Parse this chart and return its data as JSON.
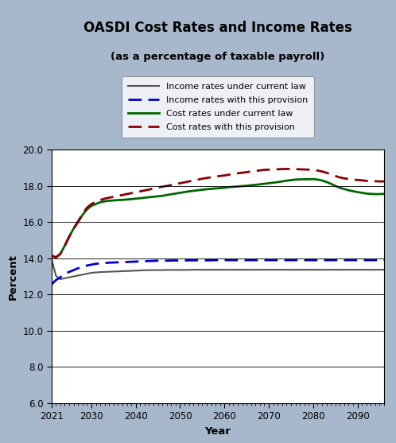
{
  "title": "OASDI Cost Rates and Income Rates",
  "subtitle": "(as a percentage of taxable payroll)",
  "xlabel": "Year",
  "ylabel": "Percent",
  "background_color": "#a8b8cc",
  "plot_bg_color": "#ffffff",
  "ylim": [
    6.0,
    20.0
  ],
  "yticks": [
    6.0,
    8.0,
    10.0,
    12.0,
    14.0,
    16.0,
    18.0,
    20.0
  ],
  "xticks": [
    2021,
    2030,
    2040,
    2050,
    2060,
    2070,
    2080,
    2090
  ],
  "years": [
    2021,
    2022,
    2023,
    2024,
    2025,
    2026,
    2027,
    2028,
    2029,
    2030,
    2031,
    2032,
    2033,
    2034,
    2035,
    2036,
    2037,
    2038,
    2039,
    2040,
    2041,
    2042,
    2043,
    2044,
    2045,
    2046,
    2047,
    2048,
    2049,
    2050,
    2051,
    2052,
    2053,
    2054,
    2055,
    2056,
    2057,
    2058,
    2059,
    2060,
    2061,
    2062,
    2063,
    2064,
    2065,
    2066,
    2067,
    2068,
    2069,
    2070,
    2071,
    2072,
    2073,
    2074,
    2075,
    2076,
    2077,
    2078,
    2079,
    2080,
    2081,
    2082,
    2083,
    2084,
    2085,
    2086,
    2087,
    2088,
    2089,
    2090,
    2091,
    2092,
    2093,
    2094,
    2095,
    2096
  ],
  "income_current_law": [
    13.98,
    13.04,
    12.85,
    12.9,
    12.95,
    13.0,
    13.05,
    13.1,
    13.15,
    13.2,
    13.22,
    13.24,
    13.25,
    13.26,
    13.27,
    13.28,
    13.29,
    13.3,
    13.31,
    13.32,
    13.33,
    13.34,
    13.35,
    13.35,
    13.35,
    13.35,
    13.36,
    13.36,
    13.36,
    13.36,
    13.36,
    13.36,
    13.37,
    13.37,
    13.37,
    13.37,
    13.37,
    13.37,
    13.37,
    13.37,
    13.37,
    13.37,
    13.37,
    13.37,
    13.37,
    13.37,
    13.37,
    13.37,
    13.37,
    13.37,
    13.37,
    13.37,
    13.37,
    13.37,
    13.37,
    13.37,
    13.37,
    13.37,
    13.37,
    13.37,
    13.37,
    13.37,
    13.37,
    13.37,
    13.37,
    13.37,
    13.37,
    13.37,
    13.37,
    13.37,
    13.37,
    13.37,
    13.37,
    13.37,
    13.37,
    13.37
  ],
  "income_provision": [
    12.55,
    12.8,
    12.95,
    13.15,
    13.25,
    13.35,
    13.45,
    13.55,
    13.6,
    13.65,
    13.7,
    13.72,
    13.74,
    13.76,
    13.77,
    13.78,
    13.79,
    13.8,
    13.81,
    13.82,
    13.83,
    13.84,
    13.85,
    13.86,
    13.87,
    13.87,
    13.87,
    13.88,
    13.88,
    13.88,
    13.88,
    13.89,
    13.89,
    13.89,
    13.89,
    13.89,
    13.89,
    13.9,
    13.9,
    13.9,
    13.9,
    13.9,
    13.9,
    13.9,
    13.9,
    13.9,
    13.9,
    13.9,
    13.9,
    13.9,
    13.9,
    13.9,
    13.9,
    13.9,
    13.9,
    13.9,
    13.9,
    13.9,
    13.9,
    13.9,
    13.9,
    13.9,
    13.9,
    13.9,
    13.9,
    13.9,
    13.9,
    13.9,
    13.9,
    13.9,
    13.9,
    13.9,
    13.9,
    13.9,
    13.9,
    13.9
  ],
  "cost_current_law": [
    14.15,
    14.05,
    14.25,
    14.7,
    15.2,
    15.65,
    16.0,
    16.4,
    16.7,
    16.9,
    17.0,
    17.1,
    17.15,
    17.18,
    17.2,
    17.22,
    17.23,
    17.25,
    17.27,
    17.3,
    17.32,
    17.35,
    17.38,
    17.4,
    17.43,
    17.45,
    17.5,
    17.54,
    17.58,
    17.62,
    17.66,
    17.7,
    17.73,
    17.76,
    17.79,
    17.82,
    17.84,
    17.86,
    17.88,
    17.9,
    17.93,
    17.95,
    17.97,
    17.99,
    18.01,
    18.04,
    18.06,
    18.09,
    18.12,
    18.15,
    18.18,
    18.21,
    18.25,
    18.29,
    18.32,
    18.35,
    18.36,
    18.37,
    18.37,
    18.38,
    18.35,
    18.3,
    18.22,
    18.12,
    18.0,
    17.9,
    17.83,
    17.76,
    17.71,
    17.66,
    17.62,
    17.58,
    17.56,
    17.55,
    17.55,
    17.56
  ],
  "cost_provision": [
    14.15,
    14.05,
    14.25,
    14.7,
    15.2,
    15.65,
    16.05,
    16.45,
    16.8,
    17.0,
    17.12,
    17.22,
    17.3,
    17.35,
    17.4,
    17.45,
    17.5,
    17.55,
    17.6,
    17.65,
    17.7,
    17.75,
    17.8,
    17.86,
    17.91,
    17.96,
    18.0,
    18.05,
    18.1,
    18.15,
    18.2,
    18.25,
    18.3,
    18.35,
    18.4,
    18.44,
    18.48,
    18.52,
    18.55,
    18.58,
    18.62,
    18.66,
    18.7,
    18.73,
    18.76,
    18.8,
    18.83,
    18.86,
    18.89,
    18.9,
    18.91,
    18.92,
    18.93,
    18.94,
    18.94,
    18.93,
    18.92,
    18.91,
    18.9,
    18.89,
    18.85,
    18.8,
    18.73,
    18.64,
    18.55,
    18.47,
    18.42,
    18.38,
    18.35,
    18.33,
    18.31,
    18.28,
    18.27,
    18.26,
    18.25,
    18.25
  ],
  "legend_entries": [
    {
      "label": "Income rates under current law",
      "color": "#555555",
      "linestyle": "solid",
      "linewidth": 1.5
    },
    {
      "label": "Income rates with this provision",
      "color": "#0000cc",
      "linestyle": "dashed",
      "linewidth": 2.0
    },
    {
      "label": "Cost rates under current law",
      "color": "#006600",
      "linestyle": "solid",
      "linewidth": 2.0
    },
    {
      "label": "Cost rates with this provision",
      "color": "#8b0000",
      "linestyle": "dashed",
      "linewidth": 2.0
    }
  ]
}
